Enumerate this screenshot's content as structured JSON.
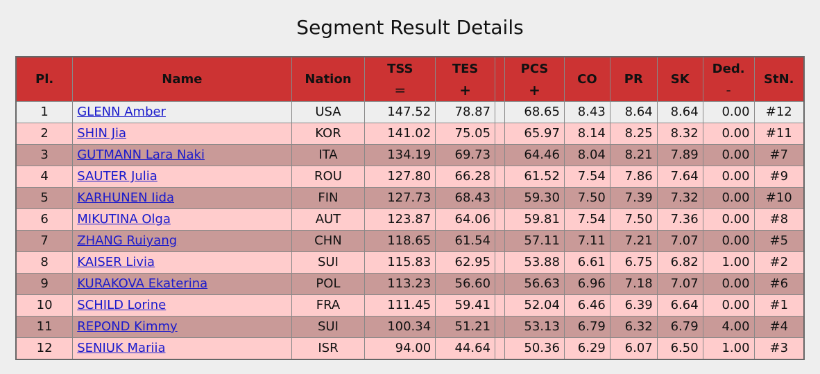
{
  "title": "Segment Result Details",
  "headers": {
    "pl": "Pl.",
    "name": "Name",
    "nation": "Nation",
    "tss": "TSS",
    "tss_op": "=",
    "tes": "TES",
    "tes_op": "+",
    "pcs": "PCS",
    "pcs_op": "+",
    "co": "CO",
    "pr": "PR",
    "sk": "SK",
    "ded": "Ded.",
    "ded_op": "-",
    "stn": "StN."
  },
  "rows": [
    {
      "pl": "1",
      "name": "GLENN Amber",
      "nation": "USA",
      "tss": "147.52",
      "tes": "78.87",
      "pcs": "68.65",
      "co": "8.43",
      "pr": "8.64",
      "sk": "8.64",
      "ded": "0.00",
      "stn": "#12"
    },
    {
      "pl": "2",
      "name": "SHIN Jia",
      "nation": "KOR",
      "tss": "141.02",
      "tes": "75.05",
      "pcs": "65.97",
      "co": "8.14",
      "pr": "8.25",
      "sk": "8.32",
      "ded": "0.00",
      "stn": "#11"
    },
    {
      "pl": "3",
      "name": "GUTMANN Lara Naki",
      "nation": "ITA",
      "tss": "134.19",
      "tes": "69.73",
      "pcs": "64.46",
      "co": "8.04",
      "pr": "8.21",
      "sk": "7.89",
      "ded": "0.00",
      "stn": "#7"
    },
    {
      "pl": "4",
      "name": "SAUTER Julia",
      "nation": "ROU",
      "tss": "127.80",
      "tes": "66.28",
      "pcs": "61.52",
      "co": "7.54",
      "pr": "7.86",
      "sk": "7.64",
      "ded": "0.00",
      "stn": "#9"
    },
    {
      "pl": "5",
      "name": "KARHUNEN Iida",
      "nation": "FIN",
      "tss": "127.73",
      "tes": "68.43",
      "pcs": "59.30",
      "co": "7.50",
      "pr": "7.39",
      "sk": "7.32",
      "ded": "0.00",
      "stn": "#10"
    },
    {
      "pl": "6",
      "name": "MIKUTINA Olga",
      "nation": "AUT",
      "tss": "123.87",
      "tes": "64.06",
      "pcs": "59.81",
      "co": "7.54",
      "pr": "7.50",
      "sk": "7.36",
      "ded": "0.00",
      "stn": "#8"
    },
    {
      "pl": "7",
      "name": "ZHANG Ruiyang",
      "nation": "CHN",
      "tss": "118.65",
      "tes": "61.54",
      "pcs": "57.11",
      "co": "7.11",
      "pr": "7.21",
      "sk": "7.07",
      "ded": "0.00",
      "stn": "#5"
    },
    {
      "pl": "8",
      "name": "KAISER Livia",
      "nation": "SUI",
      "tss": "115.83",
      "tes": "62.95",
      "pcs": "53.88",
      "co": "6.61",
      "pr": "6.75",
      "sk": "6.82",
      "ded": "1.00",
      "stn": "#2"
    },
    {
      "pl": "9",
      "name": "KURAKOVA Ekaterina",
      "nation": "POL",
      "tss": "113.23",
      "tes": "56.60",
      "pcs": "56.63",
      "co": "6.96",
      "pr": "7.18",
      "sk": "7.07",
      "ded": "0.00",
      "stn": "#6"
    },
    {
      "pl": "10",
      "name": "SCHILD Lorine",
      "nation": "FRA",
      "tss": "111.45",
      "tes": "59.41",
      "pcs": "52.04",
      "co": "6.46",
      "pr": "6.39",
      "sk": "6.64",
      "ded": "0.00",
      "stn": "#1"
    },
    {
      "pl": "11",
      "name": "REPOND Kimmy",
      "nation": "SUI",
      "tss": "100.34",
      "tes": "51.21",
      "pcs": "53.13",
      "co": "6.79",
      "pr": "6.32",
      "sk": "6.79",
      "ded": "4.00",
      "stn": "#4"
    },
    {
      "pl": "12",
      "name": "SENIUK Mariia",
      "nation": "ISR",
      "tss": "94.00",
      "tes": "44.64",
      "pcs": "50.36",
      "co": "6.29",
      "pr": "6.07",
      "sk": "6.50",
      "ded": "1.00",
      "stn": "#3"
    }
  ],
  "colors": {
    "header_bg": "#cc3333",
    "row_first_bg": "#eeeeee",
    "row_odd_bg": "#c99a98",
    "row_even_bg": "#ffcccc",
    "link": "#1a1acc",
    "page_bg": "#eeeeee"
  }
}
